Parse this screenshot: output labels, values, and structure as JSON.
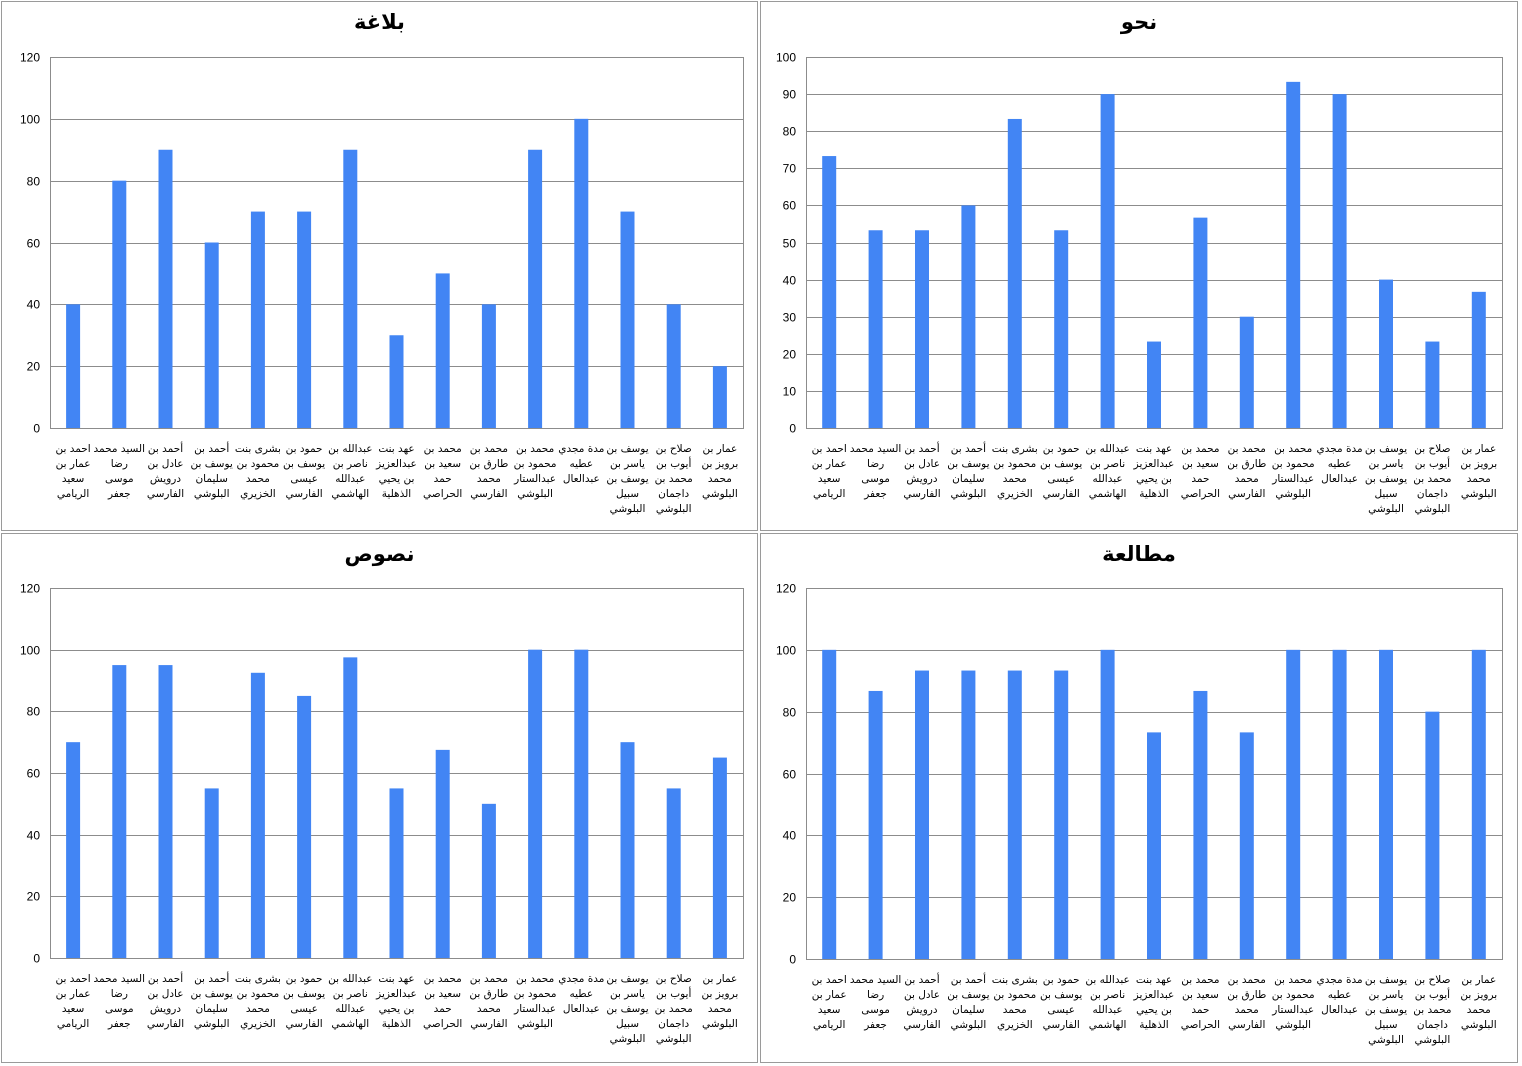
{
  "categories": [
    [
      "احمد بن",
      "عمار بن",
      "سعيد",
      "الريامي"
    ],
    [
      "السيد محمد",
      "رضا",
      "موسى",
      "جعفر"
    ],
    [
      "أحمد بن",
      "عادل بن",
      "درويش",
      "الفارسي"
    ],
    [
      "أحمد بن",
      "يوسف بن",
      "سليمان",
      "البلوشي"
    ],
    [
      "بشرى بنت",
      "محمود بن",
      "محمد",
      "الخزيري"
    ],
    [
      "حمود بن",
      "يوسف بن",
      "عيسى",
      "الفارسي"
    ],
    [
      "عبدالله بن",
      "ناصر بن",
      "عبدالله",
      "الهاشمي"
    ],
    [
      "عهد بنت",
      "عبدالعزيز",
      "بن يحيي",
      "الذهلية"
    ],
    [
      "محمد بن",
      "سعيد بن",
      "حمد",
      "الحراصي"
    ],
    [
      "محمد بن",
      "طارق بن",
      "محمد",
      "الفارسي"
    ],
    [
      "محمد بن",
      "محمود بن",
      "عبدالستار",
      "البلوشي"
    ],
    [
      "مدة مجدي",
      "عطيه",
      "عبدالعال"
    ],
    [
      "يوسف بن",
      "ياسر بن",
      "يوسف بن",
      "سبيل",
      "البلوشي"
    ],
    [
      "صلاح بن",
      "أيوب بن",
      "محمد بن",
      "داجمان",
      "البلوشي"
    ],
    [
      "عمار بن",
      "برويز بن",
      "محمد",
      "البلوشي"
    ]
  ],
  "chart_data": [
    {
      "type": "bar",
      "title": "بلاغة",
      "ylim": [
        0,
        120
      ],
      "yticks": [
        0,
        20,
        40,
        60,
        80,
        100,
        120
      ],
      "grid": true,
      "color": "#4285f4",
      "values": [
        40,
        80,
        90,
        60,
        70,
        70,
        90,
        30,
        50,
        40,
        90,
        100,
        70,
        40,
        20
      ]
    },
    {
      "type": "bar",
      "title": "نحو",
      "ylim": [
        0,
        100
      ],
      "yticks": [
        0,
        10,
        20,
        30,
        40,
        50,
        60,
        70,
        80,
        90,
        100
      ],
      "grid": true,
      "color": "#4285f4",
      "values": [
        73.3,
        53.3,
        53.3,
        60,
        83.3,
        53.3,
        90,
        23.3,
        56.7,
        30,
        93.3,
        90,
        40,
        23.3,
        36.7
      ]
    },
    {
      "type": "bar",
      "title": "نصوص",
      "ylim": [
        0,
        120
      ],
      "yticks": [
        0,
        20,
        40,
        60,
        80,
        100,
        120
      ],
      "grid": true,
      "color": "#4285f4",
      "values": [
        70,
        95,
        95,
        55,
        92.5,
        85,
        97.5,
        55,
        67.5,
        50,
        100,
        100,
        70,
        55,
        65
      ]
    },
    {
      "type": "bar",
      "title": "مطالعة",
      "ylim": [
        0,
        120
      ],
      "yticks": [
        0,
        20,
        40,
        60,
        80,
        100,
        120
      ],
      "grid": true,
      "color": "#4285f4",
      "values": [
        100,
        86.7,
        93.3,
        93.3,
        93.3,
        93.3,
        100,
        73.3,
        86.7,
        73.3,
        100,
        100,
        100,
        80,
        100
      ]
    }
  ]
}
